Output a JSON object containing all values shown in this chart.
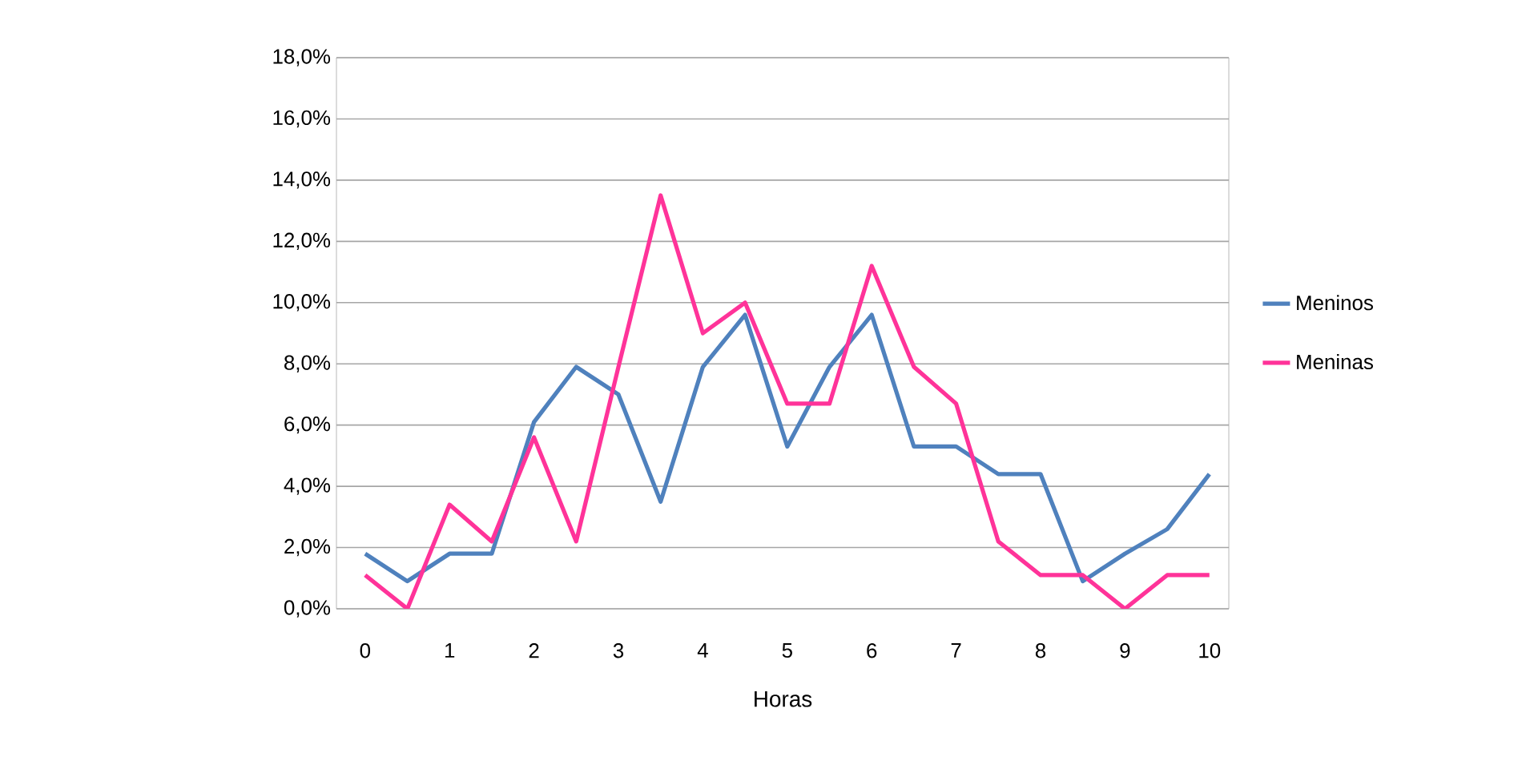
{
  "chart_data": {
    "type": "line",
    "xlabel": "Horas",
    "x": [
      0,
      0.5,
      1,
      1.5,
      2,
      2.5,
      3,
      3.5,
      4,
      4.5,
      5,
      5.5,
      6,
      6.5,
      7,
      7.5,
      8,
      8.5,
      9,
      9.5,
      10
    ],
    "series": [
      {
        "name": "Meninos",
        "color": "#4f81bd",
        "values": [
          1.8,
          0.9,
          1.8,
          1.8,
          6.1,
          7.9,
          7.0,
          3.5,
          7.9,
          9.6,
          5.3,
          7.9,
          9.6,
          5.3,
          5.3,
          4.4,
          4.4,
          0.9,
          1.8,
          2.6,
          4.4
        ]
      },
      {
        "name": "Meninas",
        "color": "#ff3399",
        "values": [
          1.1,
          0.0,
          3.4,
          2.2,
          5.6,
          2.2,
          7.9,
          13.5,
          9.0,
          10.0,
          6.7,
          6.7,
          11.2,
          7.9,
          6.7,
          2.2,
          1.1,
          1.1,
          0.0,
          1.1,
          1.1
        ]
      }
    ],
    "xlim": [
      -0.34,
      10.23
    ],
    "xticks": [
      0,
      1,
      2,
      3,
      4,
      5,
      6,
      7,
      8,
      9,
      10
    ],
    "ylim": [
      0,
      18
    ],
    "yticks": [
      {
        "value": 0,
        "label": "0,0%"
      },
      {
        "value": 2,
        "label": "2,0%"
      },
      {
        "value": 4,
        "label": "4,0%"
      },
      {
        "value": 6,
        "label": "6,0%"
      },
      {
        "value": 8,
        "label": "8,0%"
      },
      {
        "value": 10,
        "label": "10,0%"
      },
      {
        "value": 12,
        "label": "12,0%"
      },
      {
        "value": 14,
        "label": "14,0%"
      },
      {
        "value": 16,
        "label": "16,0%"
      },
      {
        "value": 18,
        "label": "18,0%"
      }
    ],
    "grid": "y",
    "legend": "right",
    "marker": "none",
    "line_style": "solid"
  }
}
